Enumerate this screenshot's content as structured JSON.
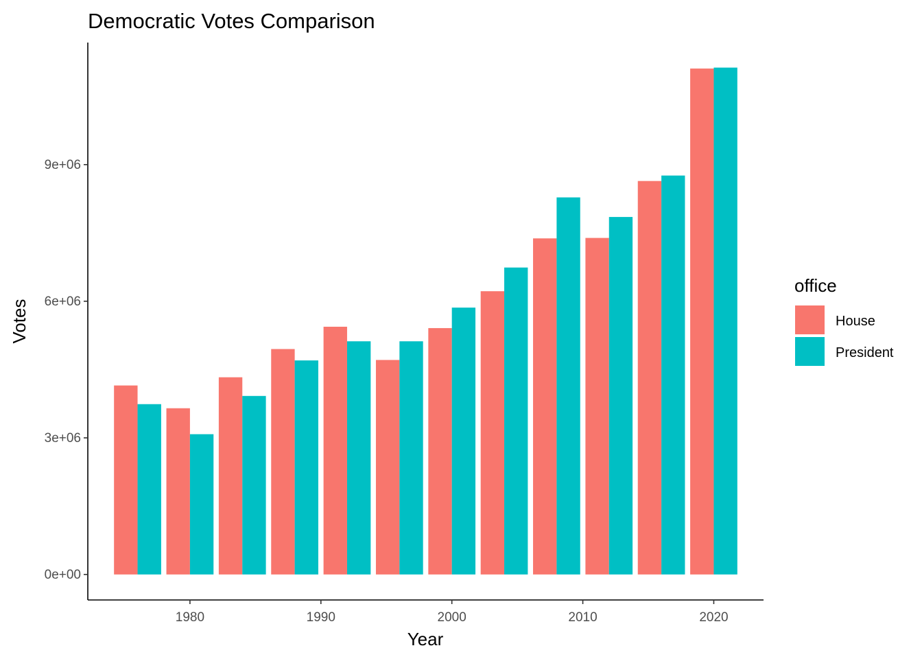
{
  "chart_data": {
    "type": "bar",
    "title": "Democratic Votes Comparison",
    "xlabel": "Year",
    "ylabel": "Votes",
    "x": [
      1976,
      1980,
      1984,
      1988,
      1992,
      1996,
      2000,
      2004,
      2008,
      2012,
      2016,
      2020
    ],
    "series": [
      {
        "name": "House",
        "color": "#F8766D",
        "values": [
          4150000,
          3650000,
          4330000,
          4950000,
          5440000,
          4710000,
          5410000,
          6220000,
          7380000,
          7390000,
          8640000,
          11110000
        ]
      },
      {
        "name": "President",
        "color": "#00BFC4",
        "values": [
          3740000,
          3080000,
          3920000,
          4700000,
          5120000,
          5120000,
          5860000,
          6740000,
          8280000,
          7850000,
          8760000,
          11130000
        ]
      }
    ],
    "xlim": [
      1972.2,
      1823.8
    ],
    "x_ticks": [
      "1980",
      "1990",
      "2000",
      "2010",
      "2020"
    ],
    "ylim": [
      -560000,
      11680000
    ],
    "y_ticks": [
      "0e+00",
      "3e+06",
      "6e+06",
      "9e+06"
    ],
    "legend": {
      "title": "office",
      "position": "right"
    },
    "grid": false
  }
}
